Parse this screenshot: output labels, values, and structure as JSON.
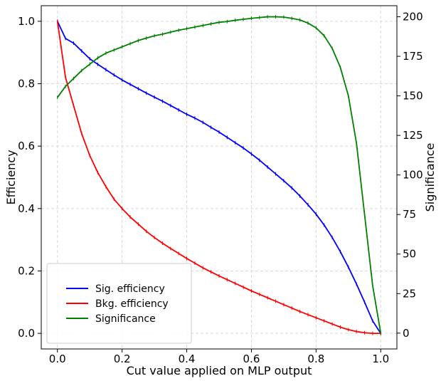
{
  "chart_data": {
    "type": "line",
    "xlabel": "Cut value applied on MLP output",
    "ylabel": "Efficiency",
    "y2label": "Significance",
    "xlim": [
      -0.05,
      1.05
    ],
    "ylim": [
      -0.05,
      1.05
    ],
    "y2lim": [
      -10,
      207
    ],
    "xticks": [
      "0.0",
      "0.2",
      "0.4",
      "0.6",
      "0.8",
      "1.0"
    ],
    "yticks": [
      "0.0",
      "0.2",
      "0.4",
      "0.6",
      "0.8",
      "1.0"
    ],
    "y2ticks": [
      "0",
      "25",
      "50",
      "75",
      "100",
      "125",
      "150",
      "175",
      "200"
    ],
    "grid": true,
    "legend_position": "lower-left",
    "x": [
      0.0,
      0.025,
      0.05,
      0.075,
      0.1,
      0.125,
      0.15,
      0.175,
      0.2,
      0.225,
      0.25,
      0.275,
      0.3,
      0.325,
      0.35,
      0.375,
      0.4,
      0.425,
      0.45,
      0.475,
      0.5,
      0.525,
      0.55,
      0.575,
      0.6,
      0.625,
      0.65,
      0.675,
      0.7,
      0.725,
      0.75,
      0.775,
      0.8,
      0.825,
      0.85,
      0.875,
      0.9,
      0.925,
      0.95,
      0.975,
      1.0
    ],
    "series": [
      {
        "name": "Sig. efficiency",
        "axis": "left",
        "color": "#0000ff",
        "values": [
          1.0,
          0.945,
          0.93,
          0.905,
          0.88,
          0.862,
          0.845,
          0.828,
          0.812,
          0.798,
          0.784,
          0.77,
          0.757,
          0.744,
          0.73,
          0.716,
          0.702,
          0.69,
          0.676,
          0.66,
          0.645,
          0.628,
          0.611,
          0.594,
          0.575,
          0.555,
          0.533,
          0.511,
          0.489,
          0.466,
          0.44,
          0.412,
          0.382,
          0.347,
          0.307,
          0.262,
          0.212,
          0.158,
          0.1,
          0.04,
          0.0
        ]
      },
      {
        "name": "Bkg. efficiency",
        "axis": "left",
        "color": "#ff0000",
        "values": [
          1.0,
          0.82,
          0.73,
          0.64,
          0.57,
          0.515,
          0.47,
          0.43,
          0.4,
          0.373,
          0.35,
          0.327,
          0.307,
          0.289,
          0.272,
          0.256,
          0.24,
          0.225,
          0.21,
          0.197,
          0.184,
          0.172,
          0.16,
          0.148,
          0.136,
          0.125,
          0.114,
          0.103,
          0.092,
          0.081,
          0.07,
          0.06,
          0.05,
          0.04,
          0.03,
          0.02,
          0.012,
          0.006,
          0.002,
          0.0,
          0.0
        ]
      },
      {
        "name": "Significance",
        "axis": "right",
        "color": "#008000",
        "values": [
          149,
          156,
          161,
          166,
          170,
          174,
          177,
          179,
          181,
          183,
          185,
          186.5,
          188,
          189,
          190.3,
          191.5,
          192.5,
          193.5,
          194.5,
          195.5,
          196.5,
          197,
          197.8,
          198.4,
          199,
          199.5,
          200,
          200,
          199.8,
          199,
          198,
          196,
          193,
          188,
          180,
          168,
          150,
          120,
          75,
          30,
          0
        ]
      }
    ]
  }
}
